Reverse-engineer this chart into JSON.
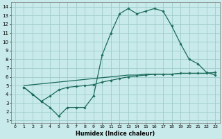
{
  "xlabel": "Humidex (Indice chaleur)",
  "bg_color": "#c8eaea",
  "grid_color": "#a0cccc",
  "line_color": "#1a6b5a",
  "xlim": [
    -0.5,
    23.5
  ],
  "ylim": [
    0.7,
    14.5
  ],
  "xticks": [
    0,
    1,
    2,
    3,
    4,
    5,
    6,
    7,
    8,
    9,
    10,
    11,
    12,
    13,
    14,
    15,
    16,
    17,
    18,
    19,
    20,
    21,
    22,
    23
  ],
  "yticks": [
    1,
    2,
    3,
    4,
    5,
    6,
    7,
    8,
    9,
    10,
    11,
    12,
    13,
    14
  ],
  "line1_x": [
    1,
    2,
    3,
    4,
    5,
    6,
    7,
    8,
    9,
    10,
    11,
    12,
    13,
    14,
    15,
    16,
    17,
    18,
    19,
    20,
    21,
    22,
    23
  ],
  "line1_y": [
    4.8,
    4.0,
    3.2,
    2.5,
    1.5,
    2.5,
    2.5,
    2.5,
    3.8,
    8.5,
    11.0,
    13.2,
    13.8,
    13.2,
    13.5,
    13.8,
    13.5,
    11.8,
    9.8,
    8.0,
    7.5,
    6.5,
    6.2
  ],
  "line2_x": [
    1,
    2,
    3,
    4,
    5,
    6,
    7,
    8,
    9,
    10,
    11,
    12,
    13,
    14,
    15,
    16,
    17,
    18,
    19,
    20,
    21,
    22,
    23
  ],
  "line2_y": [
    5.0,
    5.1,
    5.2,
    5.3,
    5.4,
    5.5,
    5.6,
    5.7,
    5.8,
    5.9,
    6.0,
    6.1,
    6.2,
    6.2,
    6.3,
    6.3,
    6.3,
    6.3,
    6.4,
    6.4,
    6.4,
    6.4,
    6.5
  ],
  "line3_x": [
    1,
    2,
    3,
    4,
    5,
    6,
    7,
    8,
    9,
    10,
    11,
    12,
    13,
    14,
    15,
    16,
    17,
    18,
    19,
    20,
    21,
    22,
    23
  ],
  "line3_y": [
    4.8,
    4.0,
    3.2,
    3.8,
    4.5,
    4.8,
    4.9,
    5.0,
    5.1,
    5.4,
    5.6,
    5.8,
    6.0,
    6.1,
    6.2,
    6.3,
    6.3,
    6.3,
    6.4,
    6.4,
    6.4,
    6.4,
    6.5
  ]
}
